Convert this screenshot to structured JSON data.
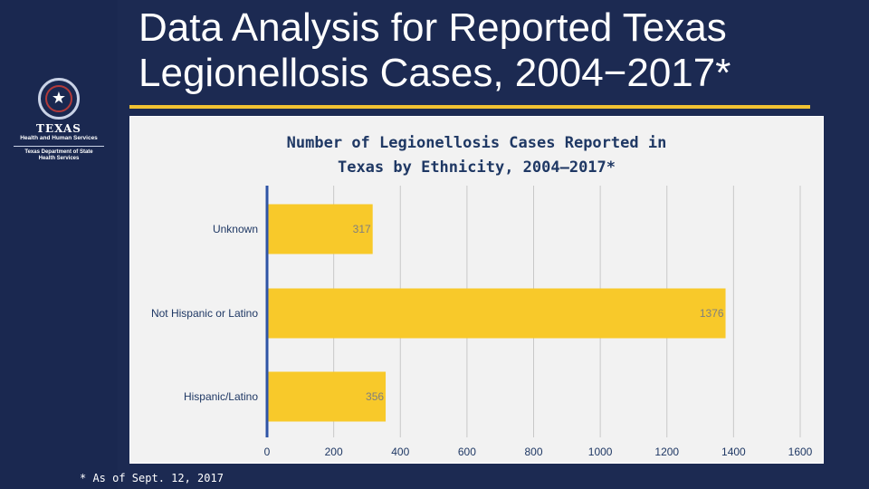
{
  "slide": {
    "title_line1": "Data Analysis for Reported Texas",
    "title_line2": "Legionellosis Cases, 2004−2017*",
    "footnote": "* As of Sept. 12, 2017",
    "colors": {
      "background": "#1c2a52",
      "accent": "#f1c232",
      "bar": "#f8c92a",
      "chart_title": "#1f3864"
    }
  },
  "logo": {
    "org": "TEXAS",
    "line1": "Health and Human Services",
    "line2": "Texas Department of State",
    "line3": "Health Services",
    "icon": "star-seal-icon"
  },
  "chart_data": {
    "type": "bar",
    "orientation": "horizontal",
    "title_line1": "Number of Legionellosis Cases Reported in",
    "title_line2": "Texas by Ethnicity, 2004–2017*",
    "categories": [
      "Unknown",
      "Not Hispanic or Latino",
      "Hispanic/Latino"
    ],
    "values": [
      317,
      1376,
      356
    ],
    "xlim": [
      0,
      1600
    ],
    "xticks": [
      0,
      200,
      400,
      600,
      800,
      1000,
      1200,
      1400,
      1600
    ],
    "grid": true,
    "xlabel": "",
    "ylabel": ""
  }
}
